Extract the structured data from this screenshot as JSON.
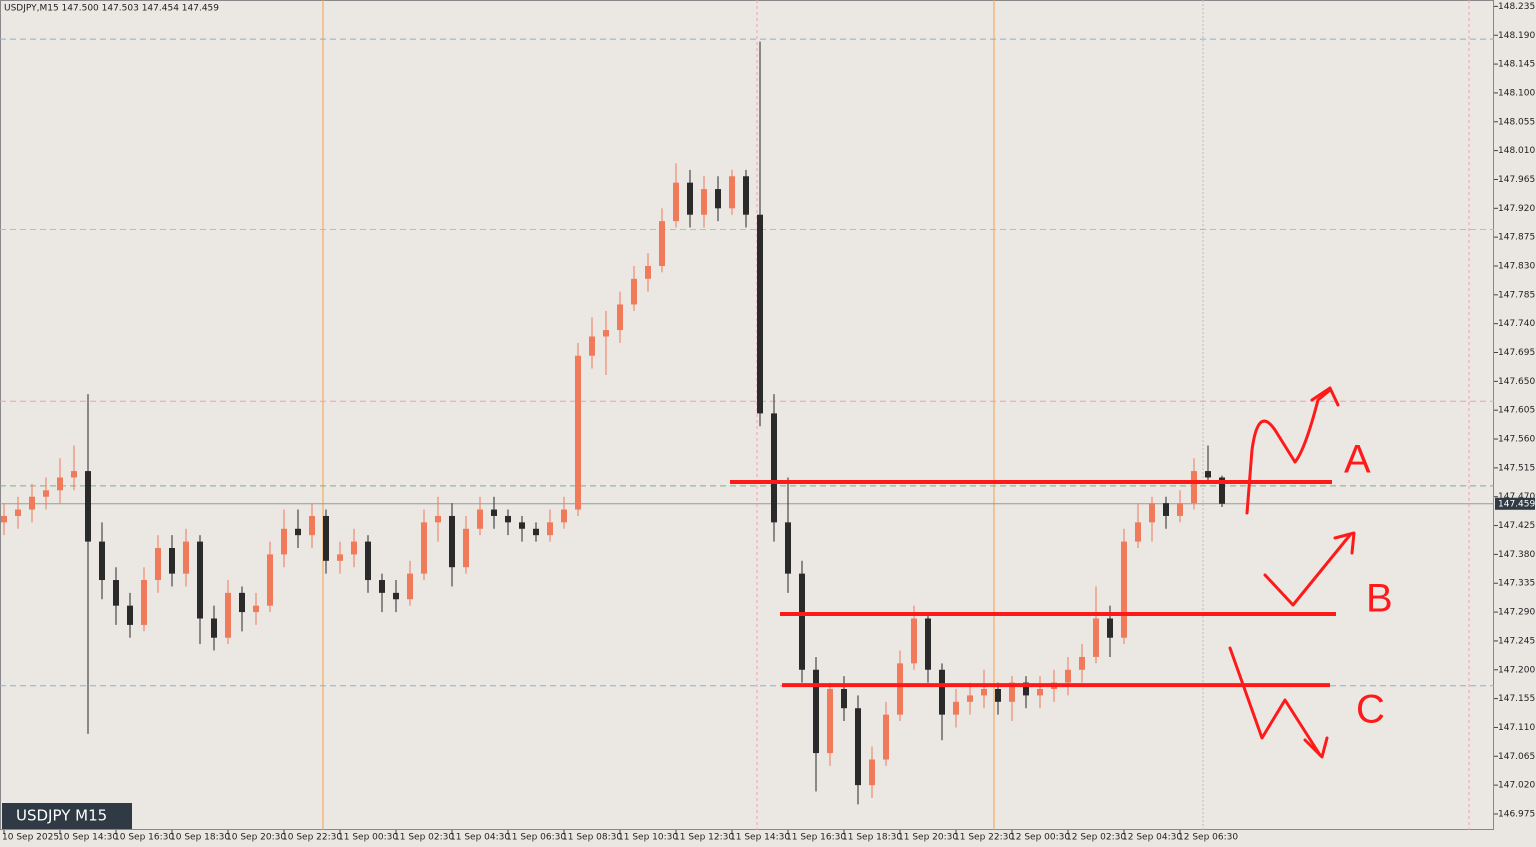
{
  "header": "USDJPY,M15  147.500 147.503 147.454 147.459",
  "chart_data": {
    "type": "candlestick",
    "symbol_label": "USDJPY M15",
    "up_color": "#f07a5a",
    "down_color": "#2a2a2a",
    "ylim": [
      146.95,
      148.245
    ],
    "yticks": [
      146.975,
      {
        "value": 147.02,
        "label": "147.020"
      },
      147.065,
      {
        "value": 147.11,
        "label": "147.110"
      },
      147.155,
      {
        "value": 147.2,
        "label": "147.200"
      },
      147.245,
      {
        "value": 147.29,
        "label": "147.290"
      },
      147.335,
      {
        "value": 147.38,
        "label": "147.380"
      },
      147.425,
      {
        "value": 147.47,
        "label": "147.470"
      },
      147.515,
      {
        "value": 147.56,
        "label": "147.560"
      },
      147.605,
      {
        "value": 147.65,
        "label": "147.650"
      },
      147.695,
      {
        "value": 147.74,
        "label": "147.740"
      },
      147.785,
      {
        "value": 147.83,
        "label": "147.830"
      },
      147.875,
      {
        "value": 147.92,
        "label": "147.920"
      },
      147.965,
      {
        "value": 148.01,
        "label": "148.010"
      },
      148.055,
      {
        "value": 148.1,
        "label": "148.100"
      },
      148.145,
      {
        "value": 148.19,
        "label": "148.190"
      },
      148.235
    ],
    "last_price": 147.459,
    "categories": [
      "10 Sep 2025",
      null,
      null,
      null,
      "10 Sep 14:30",
      null,
      null,
      null,
      "10 Sep 16:30",
      null,
      null,
      null,
      "10 Sep 18:30",
      null,
      null,
      null,
      "10 Sep 20:30",
      null,
      null,
      null,
      "10 Sep 22:30",
      null,
      null,
      null,
      "11 Sep 00:30",
      null,
      null,
      null,
      "11 Sep 02:30",
      null,
      null,
      null,
      "11 Sep 04:30",
      null,
      null,
      null,
      "11 Sep 06:30",
      null,
      null,
      null,
      "11 Sep 08:30",
      null,
      null,
      null,
      "11 Sep 10:30",
      null,
      null,
      null,
      "11 Sep 12:30",
      null,
      null,
      null,
      "11 Sep 14:30",
      null,
      null,
      null,
      "11 Sep 16:30",
      null,
      null,
      null,
      "11 Sep 18:30",
      null,
      null,
      null,
      "11 Sep 20:30",
      null,
      null,
      null,
      "11 Sep 22:30",
      null,
      null,
      null,
      "12 Sep 00:30",
      null,
      null,
      null,
      "12 Sep 02:30",
      null,
      null,
      null,
      "12 Sep 04:30",
      null,
      null,
      null,
      "12 Sep 06:30",
      null,
      null,
      null
    ],
    "candles": [
      [
        147.43,
        147.46,
        147.41,
        147.44
      ],
      [
        147.44,
        147.47,
        147.42,
        147.45
      ],
      [
        147.45,
        147.49,
        147.43,
        147.47
      ],
      [
        147.47,
        147.5,
        147.45,
        147.48
      ],
      [
        147.48,
        147.53,
        147.46,
        147.5
      ],
      [
        147.5,
        147.55,
        147.48,
        147.51
      ],
      [
        147.51,
        147.63,
        147.1,
        147.4
      ],
      [
        147.4,
        147.43,
        147.31,
        147.34
      ],
      [
        147.34,
        147.36,
        147.27,
        147.3
      ],
      [
        147.3,
        147.32,
        147.25,
        147.27
      ],
      [
        147.27,
        147.36,
        147.26,
        147.34
      ],
      [
        147.34,
        147.41,
        147.32,
        147.39
      ],
      [
        147.39,
        147.41,
        147.33,
        147.35
      ],
      [
        147.35,
        147.42,
        147.33,
        147.4
      ],
      [
        147.4,
        147.41,
        147.24,
        147.28
      ],
      [
        147.28,
        147.3,
        147.23,
        147.25
      ],
      [
        147.25,
        147.34,
        147.24,
        147.32
      ],
      [
        147.32,
        147.33,
        147.26,
        147.29
      ],
      [
        147.29,
        147.32,
        147.27,
        147.3
      ],
      [
        147.3,
        147.4,
        147.29,
        147.38
      ],
      [
        147.38,
        147.45,
        147.36,
        147.42
      ],
      [
        147.42,
        147.45,
        147.39,
        147.41
      ],
      [
        147.41,
        147.46,
        147.39,
        147.44
      ],
      [
        147.44,
        147.45,
        147.35,
        147.37
      ],
      [
        147.37,
        147.4,
        147.35,
        147.38
      ],
      [
        147.38,
        147.42,
        147.36,
        147.4
      ],
      [
        147.4,
        147.41,
        147.32,
        147.34
      ],
      [
        147.34,
        147.35,
        147.29,
        147.32
      ],
      [
        147.32,
        147.34,
        147.29,
        147.31
      ],
      [
        147.31,
        147.37,
        147.3,
        147.35
      ],
      [
        147.35,
        147.45,
        147.34,
        147.43
      ],
      [
        147.43,
        147.47,
        147.4,
        147.44
      ],
      [
        147.44,
        147.46,
        147.33,
        147.36
      ],
      [
        147.36,
        147.44,
        147.35,
        147.42
      ],
      [
        147.42,
        147.47,
        147.41,
        147.45
      ],
      [
        147.45,
        147.47,
        147.42,
        147.44
      ],
      [
        147.44,
        147.45,
        147.41,
        147.43
      ],
      [
        147.43,
        147.44,
        147.4,
        147.42
      ],
      [
        147.42,
        147.43,
        147.4,
        147.41
      ],
      [
        147.41,
        147.45,
        147.4,
        147.43
      ],
      [
        147.43,
        147.47,
        147.42,
        147.45
      ],
      [
        147.45,
        147.71,
        147.44,
        147.69
      ],
      [
        147.69,
        147.75,
        147.67,
        147.72
      ],
      [
        147.72,
        147.76,
        147.66,
        147.73
      ],
      [
        147.73,
        147.79,
        147.71,
        147.77
      ],
      [
        147.77,
        147.83,
        147.76,
        147.81
      ],
      [
        147.81,
        147.85,
        147.79,
        147.83
      ],
      [
        147.83,
        147.92,
        147.82,
        147.9
      ],
      [
        147.9,
        147.99,
        147.89,
        147.96
      ],
      [
        147.96,
        147.98,
        147.89,
        147.91
      ],
      [
        147.91,
        147.97,
        147.89,
        147.95
      ],
      [
        147.95,
        147.97,
        147.9,
        147.92
      ],
      [
        147.92,
        147.98,
        147.91,
        147.97
      ],
      [
        147.97,
        147.98,
        147.89,
        147.91
      ],
      [
        147.91,
        148.18,
        147.58,
        147.6
      ],
      [
        147.6,
        147.63,
        147.4,
        147.43
      ],
      [
        147.43,
        147.5,
        147.32,
        147.35
      ],
      [
        147.35,
        147.37,
        147.18,
        147.2
      ],
      [
        147.2,
        147.22,
        147.01,
        147.07
      ],
      [
        147.07,
        147.18,
        147.05,
        147.17
      ],
      [
        147.17,
        147.19,
        147.12,
        147.14
      ],
      [
        147.14,
        147.16,
        146.99,
        147.02
      ],
      [
        147.02,
        147.08,
        147.0,
        147.06
      ],
      [
        147.06,
        147.15,
        147.05,
        147.13
      ],
      [
        147.13,
        147.23,
        147.12,
        147.21
      ],
      [
        147.21,
        147.3,
        147.2,
        147.28
      ],
      [
        147.28,
        147.29,
        147.18,
        147.2
      ],
      [
        147.2,
        147.21,
        147.09,
        147.13
      ],
      [
        147.13,
        147.17,
        147.11,
        147.15
      ],
      [
        147.15,
        147.18,
        147.13,
        147.16
      ],
      [
        147.16,
        147.2,
        147.14,
        147.17
      ],
      [
        147.17,
        147.18,
        147.13,
        147.15
      ],
      [
        147.15,
        147.19,
        147.12,
        147.18
      ],
      [
        147.18,
        147.19,
        147.14,
        147.16
      ],
      [
        147.16,
        147.19,
        147.14,
        147.17
      ],
      [
        147.17,
        147.2,
        147.15,
        147.18
      ],
      [
        147.18,
        147.22,
        147.16,
        147.2
      ],
      [
        147.2,
        147.24,
        147.18,
        147.22
      ],
      [
        147.22,
        147.33,
        147.21,
        147.28
      ],
      [
        147.28,
        147.3,
        147.22,
        147.25
      ],
      [
        147.25,
        147.42,
        147.24,
        147.4
      ],
      [
        147.4,
        147.46,
        147.39,
        147.43
      ],
      [
        147.43,
        147.47,
        147.4,
        147.46
      ],
      [
        147.46,
        147.47,
        147.42,
        147.44
      ],
      [
        147.44,
        147.48,
        147.43,
        147.46
      ],
      [
        147.46,
        147.53,
        147.45,
        147.51
      ],
      [
        147.51,
        147.55,
        147.49,
        147.5
      ],
      [
        147.5,
        147.503,
        147.454,
        147.459
      ]
    ],
    "reference_lines": [
      {
        "value": 148.184,
        "color": "#8fb0c8"
      },
      {
        "value": 147.887,
        "color": "#f0a0b0"
      },
      {
        "value": 147.619,
        "color": "#f0a0b0"
      },
      {
        "value": 147.487,
        "color": "#7fae7f"
      },
      {
        "value": 147.175,
        "color": "#8fb0c8"
      }
    ],
    "levels": [
      {
        "name": "A",
        "value": 147.493,
        "color": "#ff1a1a"
      },
      {
        "name": "B",
        "value": 147.287,
        "color": "#ff1a1a"
      },
      {
        "name": "C",
        "value": 147.176,
        "color": "#ff1a1a"
      }
    ]
  }
}
